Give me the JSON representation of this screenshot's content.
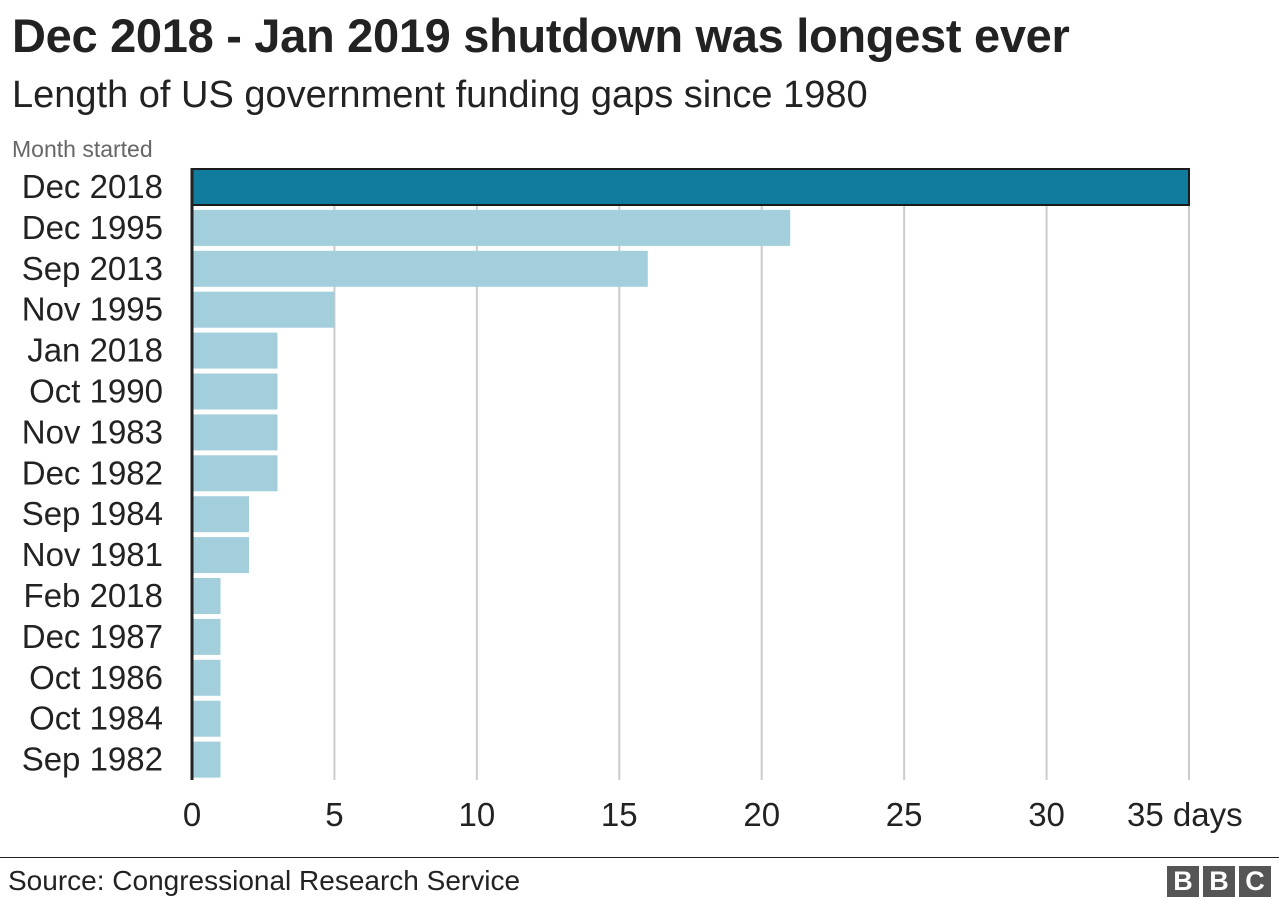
{
  "title": "Dec 2018 - Jan 2019 shutdown was longest ever",
  "subtitle": "Length of US government funding gaps since 1980",
  "source": "Source: Congressional Research Service",
  "logo": [
    "B",
    "B",
    "C"
  ],
  "colors": {
    "highlight": "#117b9e",
    "bar": "#a3cedb",
    "grid": "#cccccc",
    "axis": "#222222",
    "text": "#222222",
    "muted": "#666666"
  },
  "chart_data": {
    "type": "bar",
    "orientation": "horizontal",
    "title": "Dec 2018 - Jan 2019 shutdown was longest ever",
    "subtitle": "Length of US government funding gaps since 1980",
    "category_axis_label": "Month started",
    "categories": [
      "Dec 2018",
      "Dec 1995",
      "Sep 2013",
      "Nov 1995",
      "Jan 2018",
      "Oct 1990",
      "Nov 1983",
      "Dec 1982",
      "Sep 1984",
      "Nov 1981",
      "Feb 2018",
      "Dec 1987",
      "Oct 1986",
      "Oct 1984",
      "Sep 1982"
    ],
    "values": [
      35,
      21,
      16,
      5,
      3,
      3,
      3,
      3,
      2,
      2,
      1,
      1,
      1,
      1,
      1
    ],
    "highlight": [
      "Dec 2018"
    ],
    "xlim": [
      0,
      35
    ],
    "xticks": [
      0,
      5,
      10,
      15,
      20,
      25,
      30,
      35
    ],
    "xtick_labels": [
      "0",
      "5",
      "10",
      "15",
      "20",
      "25",
      "30",
      "35 days"
    ],
    "grid": true,
    "source": "Source: Congressional Research Service"
  }
}
